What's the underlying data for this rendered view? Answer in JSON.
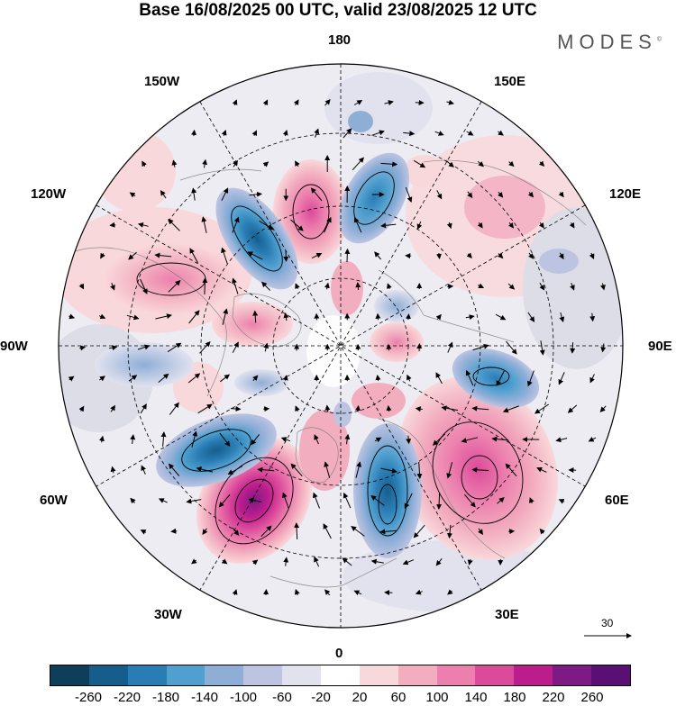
{
  "title": "Base 16/08/2025 00 UTC, valid 23/08/2025 12 UTC",
  "brand": "MODES",
  "brand_mark": "©",
  "longitude_labels": {
    "top": "180",
    "bottom": "0",
    "left": "90W",
    "right": "90E",
    "upper_left": "150W",
    "upper_right": "150E",
    "mid_upper_left": "120W",
    "mid_upper_right": "120E",
    "mid_lower_left": "60W",
    "mid_lower_right": "60E",
    "lower_left": "30W",
    "lower_right": "30E"
  },
  "reference_vector": {
    "label": "30"
  },
  "colorbar": {
    "tick_labels": [
      "-260",
      "-220",
      "-180",
      "-140",
      "-100",
      "-60",
      "-20",
      "20",
      "60",
      "100",
      "140",
      "180",
      "220",
      "260"
    ],
    "colors": [
      "#0f3e5a",
      "#155e8c",
      "#2a7db4",
      "#4f9fcf",
      "#8eaed6",
      "#bcc4e2",
      "#e2e2ef",
      "#ffffff",
      "#f9d8db",
      "#f2adbf",
      "#ec7fae",
      "#dc4a9b",
      "#bc1d8d",
      "#7e1a83",
      "#5a0f73"
    ]
  },
  "chart_data": {
    "type": "heatmap",
    "projection": "north polar stereographic",
    "title": "Base 16/08/2025 00 UTC, valid 23/08/2025 12 UTC",
    "colorbar_levels": [
      -260,
      -220,
      -180,
      -140,
      -100,
      -60,
      -20,
      20,
      60,
      100,
      140,
      180,
      220,
      260
    ],
    "anomalies": [
      {
        "name": "north-atlantic-positive-center",
        "sign": "positive",
        "peak_range": "180 to 220",
        "region": "North Atlantic, ~50N 40W"
      },
      {
        "name": "europe-negative-center",
        "sign": "negative",
        "peak_range": "-180 to -220",
        "region": "Western/Central Europe"
      },
      {
        "name": "western-russia-positive-center",
        "sign": "positive",
        "peak_range": "140 to 180",
        "region": "Western Russia, ~60N 60E"
      },
      {
        "name": "labrador-negative-center",
        "sign": "negative",
        "peak_range": "-180 to -220",
        "region": "Labrador Sea / Greenland south"
      },
      {
        "name": "beaufort-negative-center",
        "sign": "negative",
        "peak_range": "-140 to -180",
        "region": "Beaufort / Alaska north"
      },
      {
        "name": "chukchi-positive-center",
        "sign": "positive",
        "peak_range": "100 to 140",
        "region": "Chukchi / East Siberian Sea"
      },
      {
        "name": "east-siberian-negative-center",
        "sign": "negative",
        "peak_range": "-100 to -140",
        "region": "East Siberia"
      },
      {
        "name": "canada-positive-center",
        "sign": "positive",
        "peak_range": "100 to 140",
        "region": "Western Canada"
      },
      {
        "name": "central-siberia-negative-center",
        "sign": "negative",
        "peak_range": "-100 to -140",
        "region": "Central Siberia, ~70N 90E"
      }
    ],
    "reference_vector_magnitude": 30
  }
}
